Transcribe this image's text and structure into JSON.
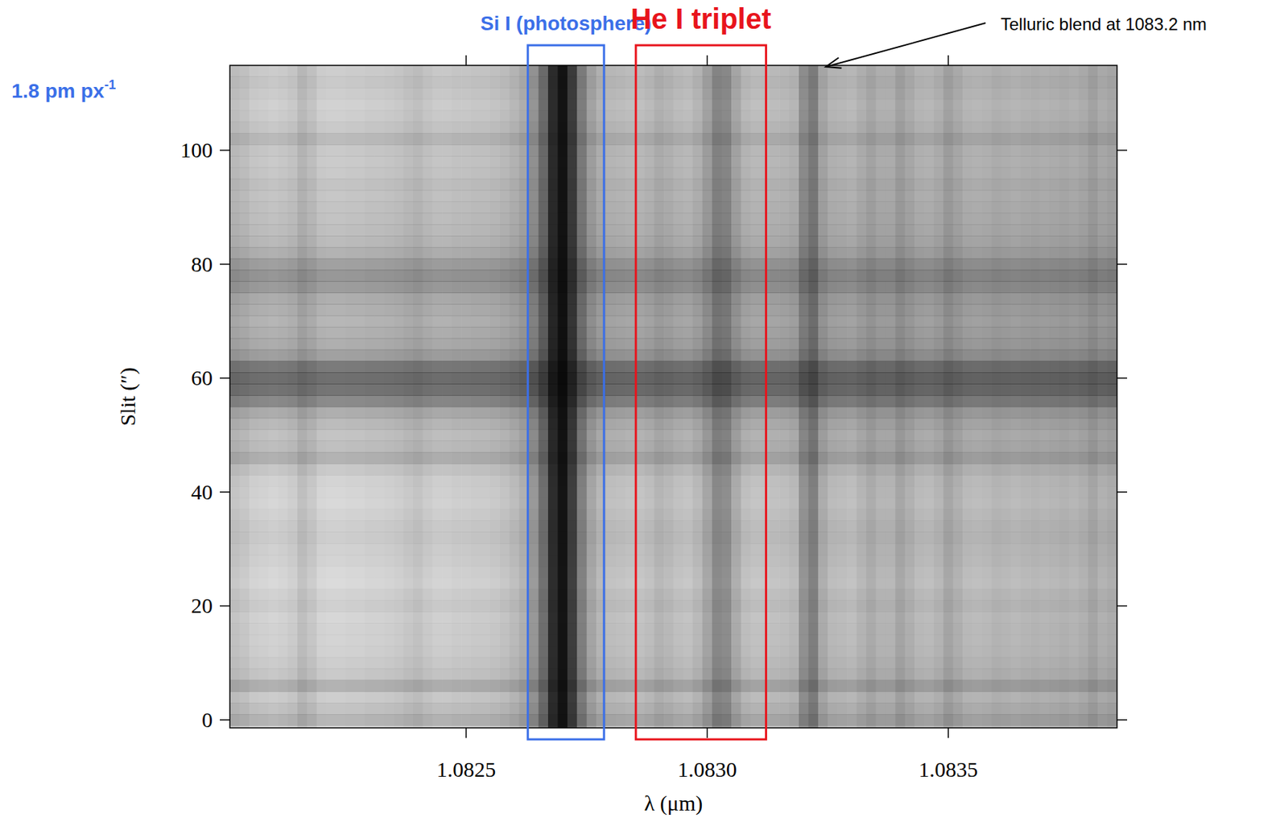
{
  "chart_data": {
    "type": "spectrogram",
    "x_label": "λ (μm)",
    "y_label": "Slit (″)",
    "xlim": [
      1.08201,
      1.08385
    ],
    "ylim": [
      -1.4,
      114.9
    ],
    "xticks": [
      1.0825,
      {
        "value": 1.083,
        "label": "1.0830"
      },
      1.0835
    ],
    "yticks": [
      0,
      20,
      40,
      60,
      80,
      100
    ],
    "spectrum": {
      "x": [
        1.08202,
        1.08204,
        1.08206,
        1.08208,
        1.0821,
        1.08212,
        1.08214,
        1.08216,
        1.08218,
        1.0822,
        1.08222,
        1.08224,
        1.08226,
        1.08228,
        1.0823,
        1.08232,
        1.08234,
        1.08236,
        1.08238,
        1.0824,
        1.08242,
        1.08244,
        1.08246,
        1.08248,
        1.0825,
        1.08252,
        1.08254,
        1.08256,
        1.08258,
        1.0826,
        1.08262,
        1.08264,
        1.08266,
        1.08268,
        1.0827,
        1.08272,
        1.08274,
        1.08276,
        1.08278,
        1.0828,
        1.08282,
        1.08284,
        1.08286,
        1.08288,
        1.0829,
        1.08292,
        1.08294,
        1.08296,
        1.08298,
        1.083,
        1.08302,
        1.08304,
        1.08306,
        1.08308,
        1.0831,
        1.08312,
        1.08314,
        1.08316,
        1.08318,
        1.0832,
        1.08322,
        1.08324,
        1.08326,
        1.08328,
        1.0833,
        1.08332,
        1.08334,
        1.08336,
        1.08338,
        1.0834,
        1.08342,
        1.08344,
        1.08346,
        1.08348,
        1.0835,
        1.08352,
        1.08354,
        1.08356,
        1.08358,
        1.0836,
        1.08362,
        1.08364,
        1.08366,
        1.08368,
        1.0837,
        1.08372,
        1.08374,
        1.08376,
        1.08378,
        1.0838,
        1.08382,
        1.08384
      ],
      "values": [
        0.8,
        0.82,
        0.85,
        0.86,
        0.87,
        0.86,
        0.84,
        0.78,
        0.82,
        0.87,
        0.88,
        0.88,
        0.87,
        0.87,
        0.86,
        0.86,
        0.85,
        0.84,
        0.82,
        0.8,
        0.83,
        0.85,
        0.85,
        0.84,
        0.84,
        0.83,
        0.83,
        0.82,
        0.8,
        0.77,
        0.72,
        0.62,
        0.45,
        0.18,
        0.08,
        0.25,
        0.52,
        0.68,
        0.75,
        0.78,
        0.79,
        0.8,
        0.8,
        0.78,
        0.74,
        0.76,
        0.79,
        0.8,
        0.76,
        0.68,
        0.56,
        0.58,
        0.7,
        0.78,
        0.8,
        0.8,
        0.79,
        0.78,
        0.76,
        0.6,
        0.52,
        0.7,
        0.76,
        0.77,
        0.78,
        0.74,
        0.7,
        0.74,
        0.74,
        0.68,
        0.72,
        0.76,
        0.77,
        0.74,
        0.68,
        0.72,
        0.76,
        0.77,
        0.76,
        0.74,
        0.75,
        0.76,
        0.75,
        0.74,
        0.75,
        0.74,
        0.73,
        0.74,
        0.72,
        0.68,
        0.72,
        0.7
      ]
    },
    "slit_profile": {
      "y": [
        0,
        2,
        4,
        6,
        8,
        10,
        12,
        14,
        16,
        18,
        20,
        22,
        24,
        26,
        28,
        30,
        32,
        34,
        36,
        38,
        40,
        42,
        44,
        46,
        48,
        50,
        52,
        54,
        56,
        58,
        60,
        62,
        64,
        66,
        68,
        70,
        72,
        74,
        76,
        78,
        80,
        82,
        84,
        86,
        88,
        90,
        92,
        94,
        96,
        98,
        100,
        102,
        104,
        106,
        108,
        110,
        112,
        114
      ],
      "values": [
        0.82,
        0.88,
        0.92,
        0.8,
        0.9,
        0.92,
        0.94,
        0.95,
        0.95,
        0.96,
        0.93,
        0.95,
        0.98,
        0.97,
        0.95,
        0.94,
        0.92,
        0.93,
        0.95,
        0.97,
        0.96,
        0.95,
        0.9,
        0.8,
        0.86,
        0.88,
        0.84,
        0.78,
        0.62,
        0.52,
        0.5,
        0.55,
        0.72,
        0.78,
        0.8,
        0.82,
        0.8,
        0.78,
        0.7,
        0.68,
        0.72,
        0.8,
        0.84,
        0.86,
        0.87,
        0.88,
        0.89,
        0.88,
        0.9,
        0.91,
        0.9,
        0.84,
        0.9,
        0.93,
        0.94,
        0.92,
        0.9,
        0.92
      ]
    },
    "annotations": [
      {
        "text": "Si I (photosphere)",
        "color": "#3b6fe8",
        "range": [
          1.082628,
          1.082786
        ]
      },
      {
        "text": "He I triplet",
        "color": "#e8141c",
        "range": [
          1.082852,
          1.083122
        ]
      },
      {
        "text": "Telluric blend at 1083.2 nm",
        "color": "#000000",
        "x": 1.08324
      },
      {
        "text": "1.8 pm px",
        "superscript": "-1",
        "color": "#3b6fe8"
      }
    ]
  }
}
